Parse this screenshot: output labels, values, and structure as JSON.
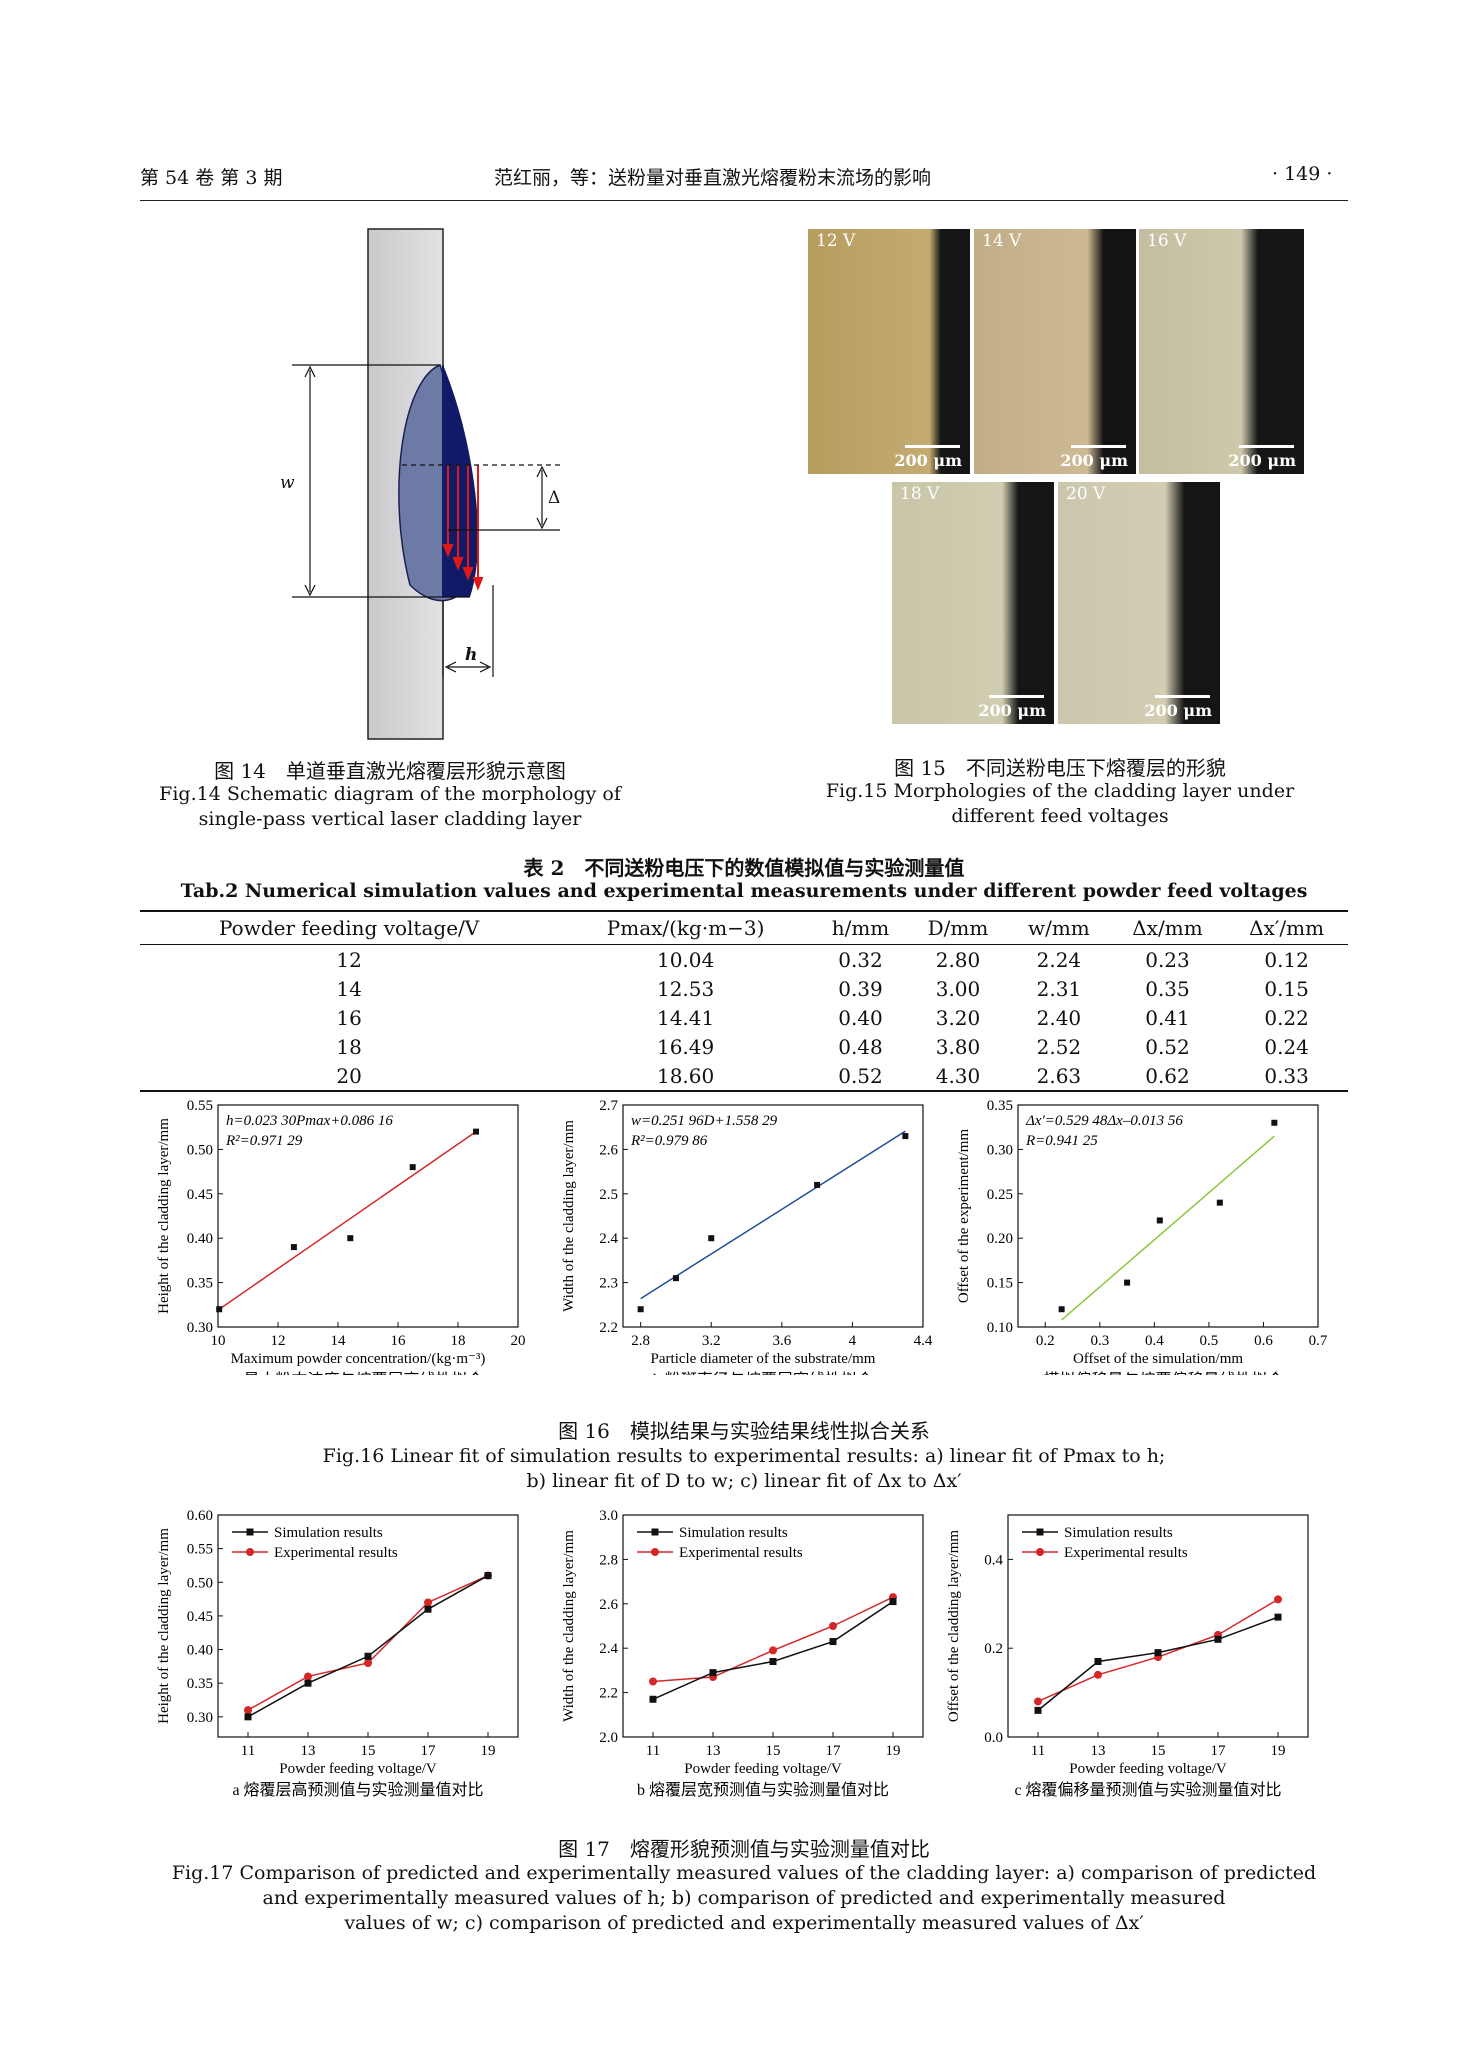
{
  "header": {
    "left": "第 54 卷 第 3 期",
    "center": "范红丽，等：送粉量对垂直激光熔覆粉末流场的影响",
    "right": "· 149 ·"
  },
  "fig14": {
    "labels": {
      "w": "w",
      "dx": "Δx′",
      "h": "h"
    },
    "caption_cn": "图 14　单道垂直激光熔覆层形貌示意图",
    "caption_en": [
      "Fig.14 Schematic diagram of the morphology of",
      "single-pass vertical laser cladding layer"
    ]
  },
  "fig15": {
    "panels": [
      {
        "label": "12 V",
        "scale": "200 μm"
      },
      {
        "label": "14 V",
        "scale": "200 μm"
      },
      {
        "label": "16 V",
        "scale": "200 μm"
      },
      {
        "label": "18 V",
        "scale": "200 μm"
      },
      {
        "label": "20 V",
        "scale": "200 μm"
      }
    ],
    "caption_cn": "图 15　不同送粉电压下熔覆层的形貌",
    "caption_en": [
      "Fig.15 Morphologies of the cladding layer under",
      "different feed voltages"
    ]
  },
  "table2": {
    "title_cn": "表 2　不同送粉电压下的数值模拟值与实验测量值",
    "title_en": "Tab.2 Numerical simulation values and experimental measurements under different powder feed voltages",
    "headers": [
      "Powder feeding voltage/V",
      "Pmax/(kg·m−3)",
      "h/mm",
      "D/mm",
      "w/mm",
      "Δx/mm",
      "Δx′/mm"
    ],
    "rows": [
      [
        "12",
        "10.04",
        "0.32",
        "2.80",
        "2.24",
        "0.23",
        "0.12"
      ],
      [
        "14",
        "12.53",
        "0.39",
        "3.00",
        "2.31",
        "0.35",
        "0.15"
      ],
      [
        "16",
        "14.41",
        "0.40",
        "3.20",
        "2.40",
        "0.41",
        "0.22"
      ],
      [
        "18",
        "16.49",
        "0.48",
        "3.80",
        "2.52",
        "0.52",
        "0.24"
      ],
      [
        "20",
        "18.60",
        "0.52",
        "4.30",
        "2.63",
        "0.62",
        "0.33"
      ]
    ]
  },
  "fig16": {
    "caption_cn": "图 16　模拟结果与实验结果线性拟合关系",
    "caption_en": [
      "Fig.16 Linear fit of simulation results to experimental results: a) linear fit of Pmax to h;",
      "b) linear fit of D to w; c) linear fit of Δx to Δx′"
    ]
  },
  "fig17": {
    "caption_cn": "图 17　熔覆形貌预测值与实验测量值对比",
    "caption_en": [
      "Fig.17 Comparison of predicted and experimentally measured values of the cladding layer: a) comparison of predicted",
      "and experimentally measured values of h; b) comparison of predicted and experimentally measured",
      "values of w; c) comparison of predicted and experimentally measured values of Δx′"
    ]
  },
  "chart_data": [
    {
      "type": "scatter",
      "title": "",
      "subcaption": "a 最大粉末浓度与熔覆层高线性拟合",
      "xlabel": "Maximum powder concentration/(kg·m⁻³)",
      "ylabel": "Height of the cladding layer/mm",
      "xlim": [
        10,
        20
      ],
      "ylim": [
        0.3,
        0.55
      ],
      "xticks": [
        10,
        12,
        14,
        16,
        18,
        20
      ],
      "yticks": [
        0.3,
        0.35,
        0.4,
        0.45,
        0.5,
        0.55
      ],
      "x": [
        10.04,
        12.53,
        14.41,
        16.49,
        18.6
      ],
      "y": [
        0.32,
        0.39,
        0.4,
        0.48,
        0.52
      ],
      "fit_line": {
        "x": [
          10.04,
          18.6
        ],
        "y": [
          0.32,
          0.52
        ],
        "color": "#d62728"
      },
      "annotations": [
        "h=0.023 30Pmax+0.086 16",
        "R²=0.971 29"
      ]
    },
    {
      "type": "scatter",
      "title": "",
      "subcaption": "b 粉斑直径与熔覆层宽线性拟合",
      "xlabel": "Particle diameter of the substrate/mm",
      "ylabel": "Width of the cladding layer/mm",
      "xlim": [
        2.7,
        4.4
      ],
      "ylim": [
        2.2,
        2.7
      ],
      "xticks": [
        2.8,
        3.2,
        3.6,
        4.0,
        4.4
      ],
      "yticks": [
        2.2,
        2.3,
        2.4,
        2.5,
        2.6,
        2.7
      ],
      "x": [
        2.8,
        3.0,
        3.2,
        3.8,
        4.3
      ],
      "y": [
        2.24,
        2.31,
        2.4,
        2.52,
        2.63
      ],
      "fit_line": {
        "x": [
          2.8,
          4.3
        ],
        "y": [
          2.264,
          2.641
        ],
        "color": "#1f4e9a"
      },
      "annotations": [
        "w=0.251 96D+1.558 29",
        "R²=0.979 86"
      ]
    },
    {
      "type": "scatter",
      "title": "",
      "subcaption": "c 模拟偏移量与熔覆偏移量线性拟合",
      "xlabel": "Offset of the simulation/mm",
      "ylabel": "Offset of the experiment/mm",
      "xlim": [
        0.15,
        0.7
      ],
      "ylim": [
        0.1,
        0.35
      ],
      "xticks": [
        0.2,
        0.3,
        0.4,
        0.5,
        0.6,
        0.7
      ],
      "yticks": [
        0.1,
        0.15,
        0.2,
        0.25,
        0.3,
        0.35
      ],
      "x": [
        0.23,
        0.35,
        0.41,
        0.52,
        0.62
      ],
      "y": [
        0.12,
        0.15,
        0.22,
        0.24,
        0.33
      ],
      "fit_line": {
        "x": [
          0.23,
          0.62
        ],
        "y": [
          0.108,
          0.315
        ],
        "color": "#8dc63f"
      },
      "annotations": [
        "Δx′=0.529 48Δx–0.013 56",
        "R=0.941 25"
      ]
    },
    {
      "type": "line",
      "title": "",
      "subcaption": "a 熔覆层高预测值与实验测量值对比",
      "xlabel": "Powder feeding voltage/V",
      "ylabel": "Height of the cladding layer/mm",
      "xlim": [
        10,
        20
      ],
      "ylim": [
        0.27,
        0.6
      ],
      "xticks": [
        11,
        13,
        15,
        17,
        19
      ],
      "yticks": [
        0.3,
        0.35,
        0.4,
        0.45,
        0.5,
        0.55,
        0.6
      ],
      "x": [
        11,
        13,
        15,
        17,
        19
      ],
      "series": [
        {
          "name": "Simulation results",
          "values": [
            0.3,
            0.35,
            0.39,
            0.46,
            0.51
          ],
          "color": "#111111",
          "marker": "square"
        },
        {
          "name": "Experimental results",
          "values": [
            0.31,
            0.36,
            0.38,
            0.47,
            0.51
          ],
          "color": "#d62728",
          "marker": "circle"
        }
      ]
    },
    {
      "type": "line",
      "title": "",
      "subcaption": "b 熔覆层宽预测值与实验测量值对比",
      "xlabel": "Powder feeding voltage/V",
      "ylabel": "Width of the cladding layer/mm",
      "xlim": [
        10,
        20
      ],
      "ylim": [
        2.0,
        3.0
      ],
      "xticks": [
        11,
        13,
        15,
        17,
        19
      ],
      "yticks": [
        2.0,
        2.2,
        2.4,
        2.6,
        2.8,
        3.0
      ],
      "x": [
        11,
        13,
        15,
        17,
        19
      ],
      "series": [
        {
          "name": "Simulation results",
          "values": [
            2.17,
            2.29,
            2.34,
            2.43,
            2.61
          ],
          "color": "#111111",
          "marker": "square"
        },
        {
          "name": "Experimental results",
          "values": [
            2.25,
            2.27,
            2.39,
            2.5,
            2.63
          ],
          "color": "#d62728",
          "marker": "circle"
        }
      ]
    },
    {
      "type": "line",
      "title": "",
      "subcaption": "c 熔覆偏移量预测值与实验测量值对比",
      "xlabel": "Powder feeding voltage/V",
      "ylabel": "Offset of the cladding layer/mm",
      "xlim": [
        10,
        20
      ],
      "ylim": [
        0,
        0.5
      ],
      "xticks": [
        11,
        13,
        15,
        17,
        19
      ],
      "yticks": [
        0,
        0.2,
        0.4
      ],
      "x": [
        11,
        13,
        15,
        17,
        19
      ],
      "series": [
        {
          "name": "Simulation results",
          "values": [
            0.06,
            0.17,
            0.19,
            0.22,
            0.27
          ],
          "color": "#111111",
          "marker": "square"
        },
        {
          "name": "Experimental results",
          "values": [
            0.08,
            0.14,
            0.18,
            0.23,
            0.31
          ],
          "color": "#d62728",
          "marker": "circle"
        }
      ]
    }
  ]
}
